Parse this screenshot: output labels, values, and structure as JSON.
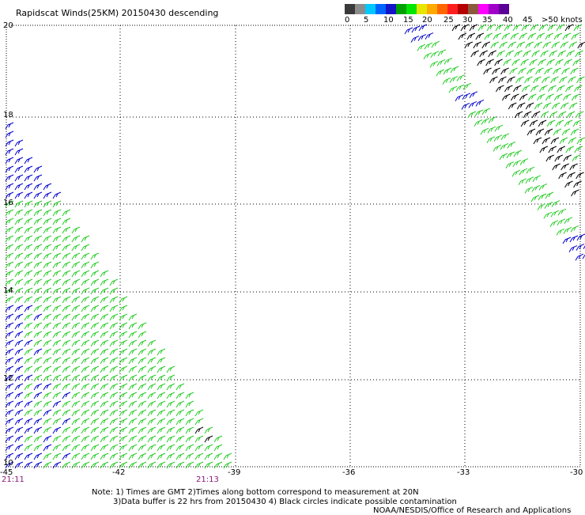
{
  "title": "Rapidscat Winds(25KM) 20150430 descending",
  "legend": {
    "colors": [
      "#3a3a3a",
      "#8c8c8c",
      "#00c8ff",
      "#0064ff",
      "#1414c8",
      "#00a000",
      "#00e600",
      "#e6e600",
      "#ffaa00",
      "#ff6600",
      "#ff1e1e",
      "#b40000",
      "#8c5a3c",
      "#ff00ff",
      "#a000c8",
      "#5a0096"
    ],
    "labels": [
      "0",
      "5",
      "10",
      "15",
      "20",
      "25",
      "30",
      "35",
      "40",
      "45",
      ">50 knots"
    ]
  },
  "axes": {
    "lon_labels": [
      "-45",
      "-42",
      "-39",
      "-36",
      "-33",
      "-30"
    ],
    "lat_labels": [
      "20",
      "18",
      "16",
      "14",
      "12",
      "10"
    ]
  },
  "times": {
    "left": "21:11",
    "mid": "21:13"
  },
  "notes": {
    "line1": "Note: 1) Times are GMT 2)Times along bottom correspond to measurement at 20N",
    "line2": "3)Data buffer is 22 hrs from 20150430 4) Black circles indicate possible contamination",
    "credit": "NOAA/NESDIS/Office of Research and Applications"
  },
  "wind_colors": {
    "green": "#22cc22",
    "blue": "#0000cc",
    "black": "#000000"
  }
}
